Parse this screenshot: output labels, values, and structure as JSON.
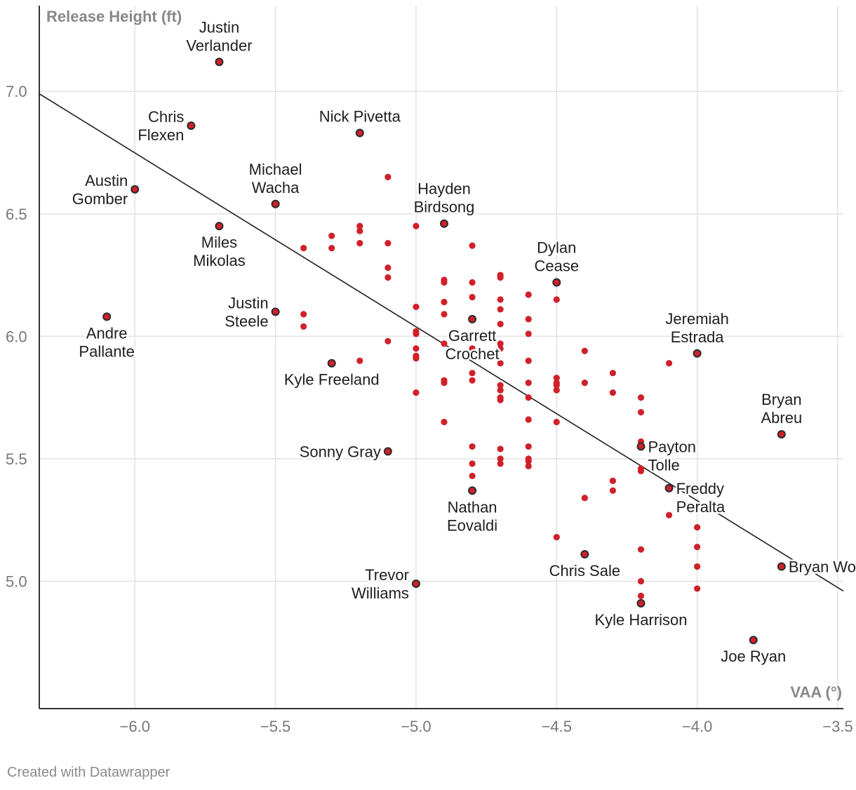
{
  "chart_data": {
    "type": "scatter",
    "xlabel": "VAA (°)",
    "ylabel": "Release Height (ft)",
    "xlim": [
      -6.34,
      -3.48
    ],
    "ylim": [
      4.48,
      7.35
    ],
    "x_ticks": [
      -6.0,
      -5.5,
      -5.0,
      -4.5,
      -4.0,
      -3.5
    ],
    "x_tick_labels": [
      "−6.0",
      "−5.5",
      "−5.0",
      "−4.5",
      "−4.0",
      "−3.5"
    ],
    "y_ticks": [
      5.0,
      5.5,
      6.0,
      6.5,
      7.0
    ],
    "y_tick_labels": [
      "5.0",
      "5.5",
      "6.0",
      "6.5",
      "7.0"
    ],
    "point_color": "#d0202a",
    "point_outline_color": "#2a2a2a",
    "trend_line": {
      "x": [
        -6.34,
        -3.48
      ],
      "y": [
        6.99,
        4.96
      ],
      "color": "#1e1e1e"
    },
    "labeled_points": [
      {
        "name": "Justin Verlander",
        "x": -5.7,
        "y": 7.12,
        "label_lines": [
          "Justin",
          "Verlander"
        ],
        "label_pos": "above"
      },
      {
        "name": "Chris Flexen",
        "x": -5.8,
        "y": 6.86,
        "label_lines": [
          "Chris",
          "Flexen"
        ],
        "label_pos": "left"
      },
      {
        "name": "Nick Pivetta",
        "x": -5.2,
        "y": 6.83,
        "label_lines": [
          "Nick Pivetta"
        ],
        "label_pos": "above"
      },
      {
        "name": "Michael Wacha",
        "x": -5.5,
        "y": 6.54,
        "label_lines": [
          "Michael",
          "Wacha"
        ],
        "label_pos": "above"
      },
      {
        "name": "Austin Gomber",
        "x": -6.0,
        "y": 6.6,
        "label_lines": [
          "Austin",
          "Gomber"
        ],
        "label_pos": "left"
      },
      {
        "name": "Miles Mikolas",
        "x": -5.7,
        "y": 6.45,
        "label_lines": [
          "Miles",
          "Mikolas"
        ],
        "label_pos": "below"
      },
      {
        "name": "Hayden Birdsong",
        "x": -4.9,
        "y": 6.46,
        "label_lines": [
          "Hayden",
          "Birdsong"
        ],
        "label_pos": "above"
      },
      {
        "name": "Dylan Cease",
        "x": -4.5,
        "y": 6.22,
        "label_lines": [
          "Dylan",
          "Cease"
        ],
        "label_pos": "above"
      },
      {
        "name": "Justin Steele",
        "x": -5.5,
        "y": 6.1,
        "label_lines": [
          "Justin",
          "Steele"
        ],
        "label_pos": "left"
      },
      {
        "name": "Andre Pallante",
        "x": -6.1,
        "y": 6.08,
        "label_lines": [
          "Andre",
          "Pallante"
        ],
        "label_pos": "below"
      },
      {
        "name": "Garrett Crochet",
        "x": -4.8,
        "y": 6.07,
        "label_lines": [
          "Garrett",
          "Crochet"
        ],
        "label_pos": "below"
      },
      {
        "name": "Jeremiah Estrada",
        "x": -4.0,
        "y": 5.93,
        "label_lines": [
          "Jeremiah",
          "Estrada"
        ],
        "label_pos": "above"
      },
      {
        "name": "Kyle Freeland",
        "x": -5.3,
        "y": 5.89,
        "label_lines": [
          "Kyle Freeland"
        ],
        "label_pos": "below"
      },
      {
        "name": "Bryan Abreu",
        "x": -3.7,
        "y": 5.6,
        "label_lines": [
          "Bryan",
          "Abreu"
        ],
        "label_pos": "above"
      },
      {
        "name": "Payton Tolle",
        "x": -4.2,
        "y": 5.55,
        "label_lines": [
          "Payton",
          "Tolle"
        ],
        "label_pos": "right"
      },
      {
        "name": "Sonny Gray",
        "x": -5.1,
        "y": 5.53,
        "label_lines": [
          "Sonny Gray"
        ],
        "label_pos": "left"
      },
      {
        "name": "Freddy Peralta",
        "x": -4.1,
        "y": 5.38,
        "label_lines": [
          "Freddy",
          "Peralta"
        ],
        "label_pos": "right"
      },
      {
        "name": "Nathan Eovaldi",
        "x": -4.8,
        "y": 5.37,
        "label_lines": [
          "Nathan",
          "Eovaldi"
        ],
        "label_pos": "below"
      },
      {
        "name": "Chris Sale",
        "x": -4.4,
        "y": 5.11,
        "label_lines": [
          "Chris Sale"
        ],
        "label_pos": "below"
      },
      {
        "name": "Bryan Woo",
        "x": -3.7,
        "y": 5.06,
        "label_lines": [
          "Bryan Woo"
        ],
        "label_pos": "right"
      },
      {
        "name": "Trevor Williams",
        "x": -5.0,
        "y": 4.99,
        "label_lines": [
          "Trevor",
          "Williams"
        ],
        "label_pos": "left"
      },
      {
        "name": "Kyle Harrison",
        "x": -4.2,
        "y": 4.91,
        "label_lines": [
          "Kyle Harrison"
        ],
        "label_pos": "below"
      },
      {
        "name": "Joe Ryan",
        "x": -3.8,
        "y": 4.76,
        "label_lines": [
          "Joe Ryan"
        ],
        "label_pos": "below"
      }
    ],
    "other_points": [
      [
        -5.4,
        6.36
      ],
      [
        -5.3,
        6.41
      ],
      [
        -5.3,
        6.36
      ],
      [
        -5.2,
        6.45
      ],
      [
        -5.2,
        6.43
      ],
      [
        -5.2,
        6.38
      ],
      [
        -5.1,
        6.65
      ],
      [
        -5.1,
        6.38
      ],
      [
        -5.1,
        6.28
      ],
      [
        -5.1,
        6.24
      ],
      [
        -5.0,
        6.45
      ],
      [
        -5.4,
        6.09
      ],
      [
        -5.4,
        6.04
      ],
      [
        -5.2,
        5.9
      ],
      [
        -5.1,
        5.98
      ],
      [
        -5.0,
        6.12
      ],
      [
        -5.0,
        6.02
      ],
      [
        -5.0,
        6.01
      ],
      [
        -5.0,
        5.95
      ],
      [
        -5.0,
        5.92
      ],
      [
        -5.0,
        5.91
      ],
      [
        -5.0,
        5.77
      ],
      [
        -4.9,
        6.23
      ],
      [
        -4.9,
        6.22
      ],
      [
        -4.9,
        6.14
      ],
      [
        -4.9,
        6.09
      ],
      [
        -4.9,
        5.97
      ],
      [
        -4.9,
        5.82
      ],
      [
        -4.9,
        5.81
      ],
      [
        -4.9,
        5.65
      ],
      [
        -4.8,
        6.37
      ],
      [
        -4.8,
        6.22
      ],
      [
        -4.8,
        6.16
      ],
      [
        -4.8,
        5.95
      ],
      [
        -4.8,
        5.85
      ],
      [
        -4.8,
        5.82
      ],
      [
        -4.8,
        5.55
      ],
      [
        -4.8,
        5.48
      ],
      [
        -4.8,
        5.43
      ],
      [
        -4.7,
        6.25
      ],
      [
        -4.7,
        6.24
      ],
      [
        -4.7,
        6.15
      ],
      [
        -4.7,
        6.11
      ],
      [
        -4.7,
        6.05
      ],
      [
        -4.7,
        5.97
      ],
      [
        -4.7,
        5.95
      ],
      [
        -4.7,
        5.89
      ],
      [
        -4.7,
        5.8
      ],
      [
        -4.7,
        5.78
      ],
      [
        -4.7,
        5.75
      ],
      [
        -4.7,
        5.74
      ],
      [
        -4.7,
        5.54
      ],
      [
        -4.7,
        5.5
      ],
      [
        -4.7,
        5.48
      ],
      [
        -4.6,
        6.17
      ],
      [
        -4.6,
        6.07
      ],
      [
        -4.6,
        6.01
      ],
      [
        -4.6,
        5.9
      ],
      [
        -4.6,
        5.81
      ],
      [
        -4.6,
        5.75
      ],
      [
        -4.6,
        5.66
      ],
      [
        -4.6,
        5.55
      ],
      [
        -4.6,
        5.5
      ],
      [
        -4.6,
        5.49
      ],
      [
        -4.6,
        5.47
      ],
      [
        -4.5,
        6.15
      ],
      [
        -4.5,
        5.83
      ],
      [
        -4.5,
        5.81
      ],
      [
        -4.5,
        5.8
      ],
      [
        -4.5,
        5.78
      ],
      [
        -4.5,
        5.65
      ],
      [
        -4.5,
        5.18
      ],
      [
        -4.4,
        5.94
      ],
      [
        -4.4,
        5.81
      ],
      [
        -4.4,
        5.34
      ],
      [
        -4.3,
        5.85
      ],
      [
        -4.3,
        5.77
      ],
      [
        -4.3,
        5.41
      ],
      [
        -4.3,
        5.37
      ],
      [
        -4.2,
        5.75
      ],
      [
        -4.2,
        5.69
      ],
      [
        -4.2,
        5.57
      ],
      [
        -4.2,
        5.46
      ],
      [
        -4.2,
        5.45
      ],
      [
        -4.2,
        5.13
      ],
      [
        -4.2,
        5.0
      ],
      [
        -4.2,
        4.94
      ],
      [
        -4.1,
        5.89
      ],
      [
        -4.1,
        5.27
      ],
      [
        -4.0,
        5.22
      ],
      [
        -4.0,
        5.14
      ],
      [
        -4.0,
        5.06
      ],
      [
        -4.0,
        4.97
      ]
    ]
  },
  "footer": {
    "credit": "Created with Datawrapper"
  }
}
